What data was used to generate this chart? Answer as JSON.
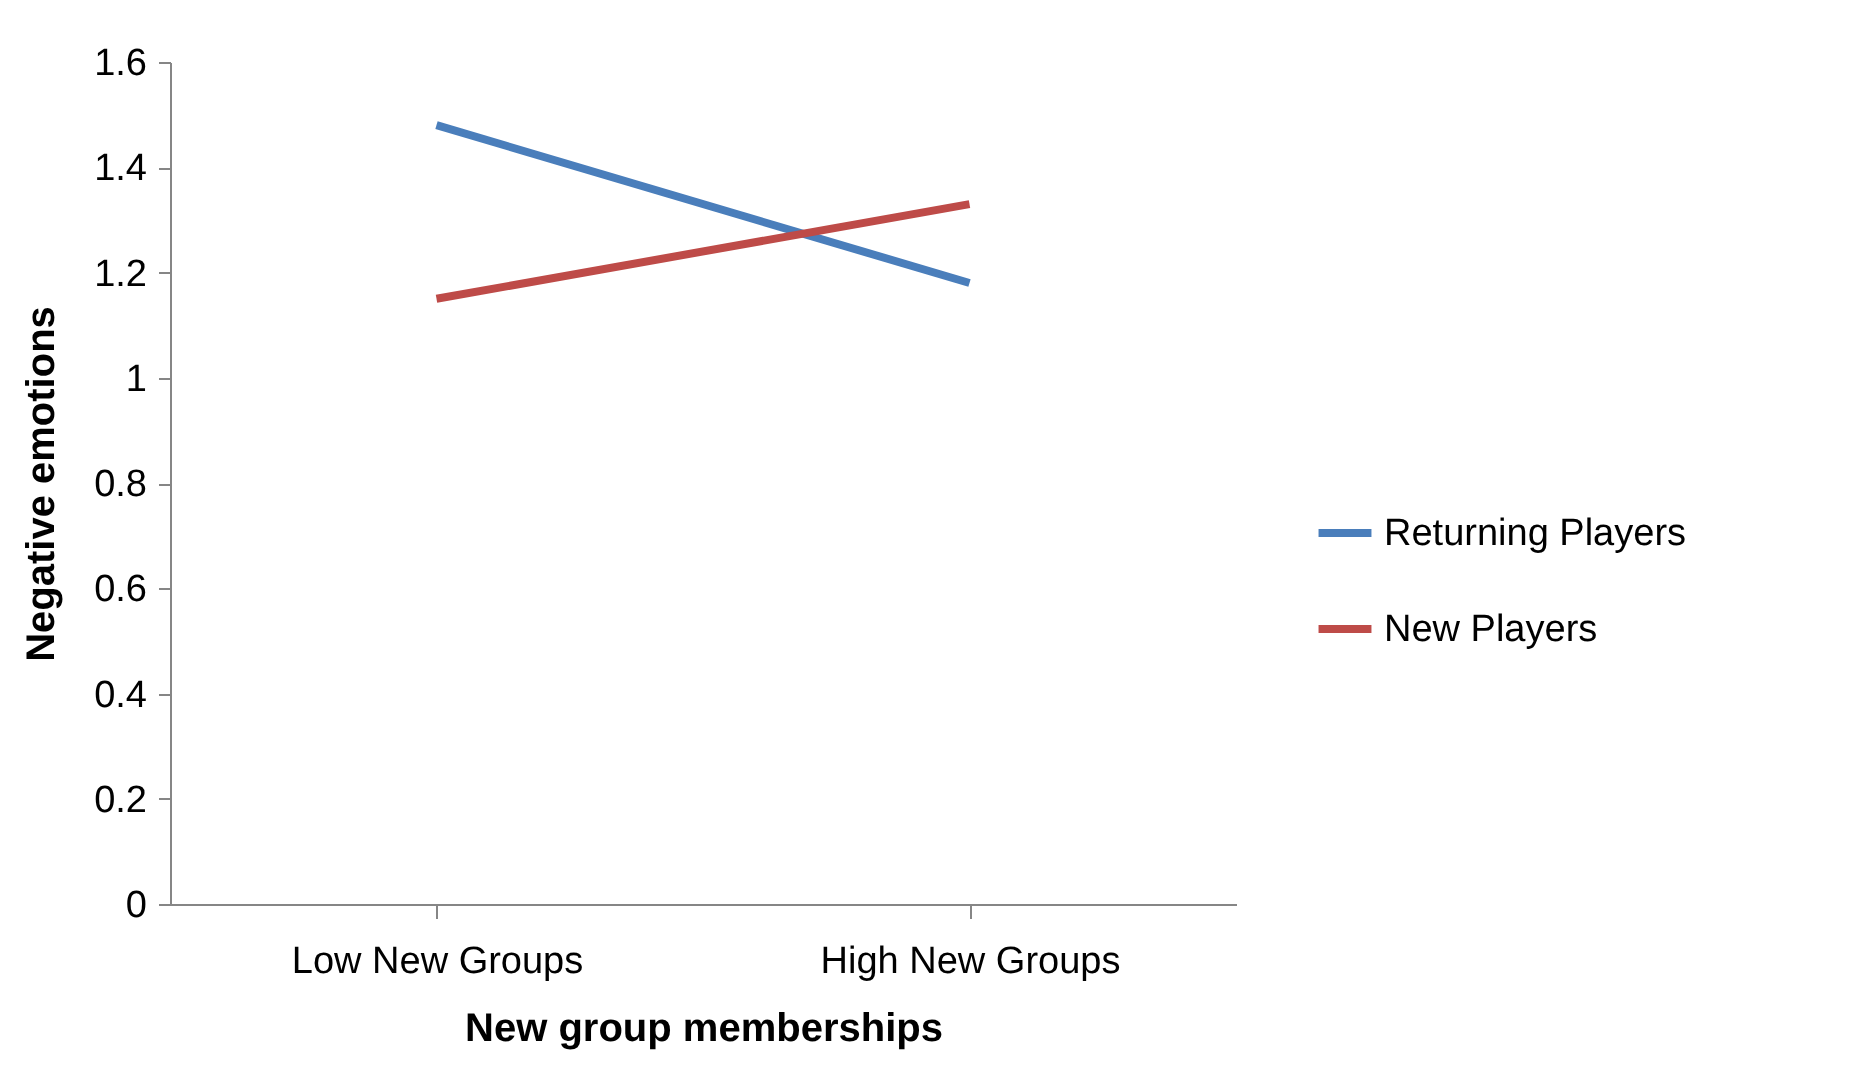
{
  "chart_data": {
    "type": "line",
    "xlabel": "New group memberships",
    "ylabel": "Negative emotions",
    "categories": [
      "Low New Groups",
      "High New Groups"
    ],
    "series": [
      {
        "name": "Returning Players",
        "color": "#4a7ebb",
        "values": [
          1.48,
          1.18
        ]
      },
      {
        "name": "New Players",
        "color": "#be4b48",
        "values": [
          1.15,
          1.33
        ]
      }
    ],
    "ylim": [
      0,
      1.6
    ],
    "yticks": [
      0,
      0.2,
      0.4,
      0.6,
      0.8,
      1,
      1.2,
      1.4,
      1.6
    ],
    "grid": false,
    "legend": "right",
    "marker": "none",
    "line_style": "solid"
  }
}
